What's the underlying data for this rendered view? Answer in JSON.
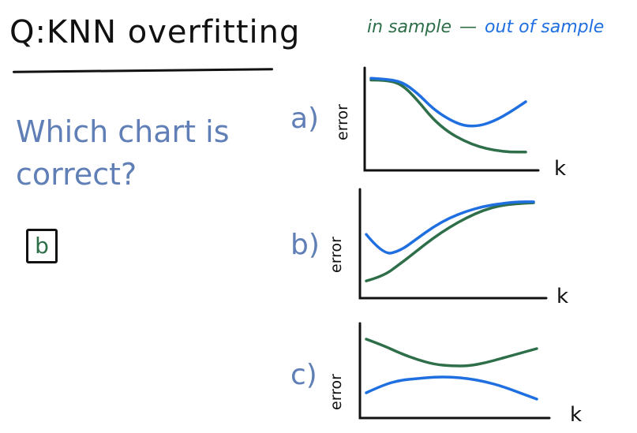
{
  "title": "Q:KNN overfitting",
  "question": "Which chart is correct?",
  "answer": "b",
  "legend": {
    "in_sample": "in sample",
    "dash": "—",
    "out_of_sample": "out of sample",
    "in_sample_color": "#2e6f4a",
    "out_of_sample_color": "#1f6fe0"
  },
  "chart_data": [
    {
      "type": "line",
      "label": "a)",
      "xlabel": "k",
      "ylabel": "error",
      "x": [
        0,
        1,
        2,
        3,
        4,
        5,
        6,
        7,
        8,
        9,
        10
      ],
      "series": [
        {
          "name": "in sample",
          "values": [
            0.95,
            0.95,
            0.9,
            0.72,
            0.5,
            0.35,
            0.25,
            0.18,
            0.14,
            0.12,
            0.12
          ]
        },
        {
          "name": "out of sample",
          "values": [
            0.97,
            0.96,
            0.93,
            0.8,
            0.62,
            0.5,
            0.42,
            0.42,
            0.48,
            0.58,
            0.7
          ]
        }
      ]
    },
    {
      "type": "line",
      "label": "b)",
      "xlabel": "k",
      "ylabel": "error",
      "x": [
        0,
        1,
        2,
        3,
        4,
        5,
        6,
        7,
        8,
        9,
        10
      ],
      "series": [
        {
          "name": "in sample",
          "values": [
            0.1,
            0.15,
            0.28,
            0.42,
            0.56,
            0.68,
            0.78,
            0.86,
            0.91,
            0.93,
            0.94
          ]
        },
        {
          "name": "out of sample",
          "values": [
            0.6,
            0.38,
            0.42,
            0.55,
            0.68,
            0.78,
            0.85,
            0.9,
            0.93,
            0.95,
            0.95
          ]
        }
      ]
    },
    {
      "type": "line",
      "label": "c)",
      "xlabel": "k",
      "ylabel": "error",
      "x": [
        0,
        1,
        2,
        3,
        4,
        5,
        6,
        7,
        8,
        9,
        10
      ],
      "series": [
        {
          "name": "in sample",
          "values": [
            0.9,
            0.82,
            0.72,
            0.64,
            0.58,
            0.56,
            0.56,
            0.6,
            0.66,
            0.72,
            0.78
          ]
        },
        {
          "name": "out of sample",
          "values": [
            0.22,
            0.32,
            0.38,
            0.4,
            0.42,
            0.42,
            0.4,
            0.36,
            0.3,
            0.22,
            0.14
          ]
        }
      ]
    }
  ]
}
